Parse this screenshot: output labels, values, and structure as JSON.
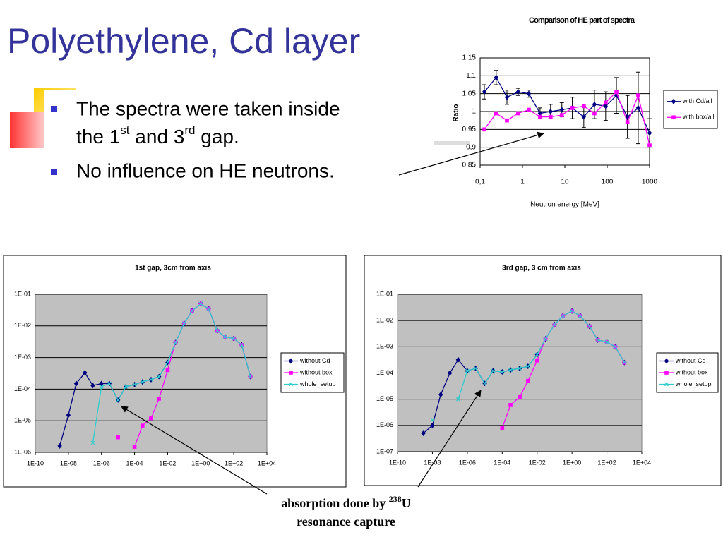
{
  "slide": {
    "title": "Polyethylene, Cd layer",
    "bullets": [
      [
        "The spectra were taken inside",
        "the 1",
        "st",
        " and 3",
        "rd",
        " gap."
      ],
      [
        "No influence on HE neutrons."
      ]
    ],
    "annotation": [
      "absorption done by ",
      "238",
      "U",
      "resonance capture"
    ]
  },
  "chart_data": [
    {
      "type": "line",
      "title": "Comparison of HE part of spectra",
      "x_label": "Neutron energy [MeV]",
      "y_label": "Ratio",
      "xlog": true,
      "ylog": false,
      "grid": true,
      "legend": "right",
      "x": [
        0.126,
        0.24,
        0.43,
        0.79,
        1.41,
        2.6,
        4.6,
        8.5,
        15,
        28,
        50,
        92,
        165,
        300,
        540,
        1000
      ],
      "series": [
        {
          "name": "with Cd/all",
          "color": "#000080",
          "marker": "diamond",
          "values": [
            1.055,
            1.095,
            1.04,
            1.055,
            1.05,
            0.995,
            1.0,
            1.005,
            1.01,
            0.985,
            1.02,
            1.015,
            1.045,
            0.985,
            1.01,
            0.94
          ],
          "errors": [
            0.02,
            0.02,
            0.02,
            0.01,
            0.01,
            0.015,
            0.02,
            0.02,
            0.03,
            0.03,
            0.04,
            0.04,
            0.05,
            0.06,
            0.1,
            0.04
          ]
        },
        {
          "name": "with box/all",
          "color": "#ff00ff",
          "marker": "square",
          "values": [
            0.95,
            0.995,
            0.975,
            0.995,
            1.005,
            0.985,
            0.985,
            0.99,
            1.01,
            1.015,
            0.995,
            1.025,
            1.055,
            0.97,
            1.045,
            0.905
          ]
        }
      ],
      "xlim": [
        0.1,
        1000
      ],
      "xticks": [
        {
          "value": 0.1,
          "label": "0,1"
        },
        1,
        10,
        100,
        1000
      ],
      "ylim": [
        0.85,
        1.15
      ],
      "yticks": [
        {
          "value": 0.85,
          "label": "0,85"
        },
        {
          "value": 0.9,
          "label": "0,9"
        },
        {
          "value": 0.95,
          "label": "0,95"
        },
        1,
        {
          "value": 1.05,
          "label": "1,05"
        },
        {
          "value": 1.1,
          "label": "1,1"
        },
        {
          "value": 1.15,
          "label": "1,15"
        }
      ]
    },
    {
      "type": "line",
      "title": "1st gap, 3cm from axis",
      "xlog": true,
      "ylog": true,
      "grid": true,
      "legend": "right",
      "x": [
        3e-09,
        1e-08,
        3e-08,
        1e-07,
        3e-07,
        1e-06,
        3e-06,
        1e-05,
        3e-05,
        0.0001,
        0.0003,
        0.001,
        0.003,
        0.01,
        0.03,
        0.1,
        0.3,
        1,
        3,
        10,
        30,
        100,
        300,
        1000
      ],
      "series": [
        {
          "name": "without Cd",
          "color": "#000080",
          "marker": "diamond",
          "values": [
            1.6e-06,
            1.5e-05,
            0.00015,
            0.00033,
            0.00013,
            0.00015,
            0.00015,
            4.5e-05,
            0.00012,
            0.00014,
            0.00017,
            0.0002,
            0.00025,
            0.0007,
            0.003,
            0.012,
            0.03,
            0.05,
            0.035,
            0.007,
            0.0045,
            0.004,
            0.0025,
            0.00025
          ]
        },
        {
          "name": "without box",
          "color": "#ff00ff",
          "marker": "square",
          "values": [
            null,
            null,
            null,
            null,
            null,
            null,
            null,
            3e-06,
            null,
            1.5e-06,
            7e-06,
            1.2e-05,
            5e-05,
            0.0004,
            0.003,
            0.012,
            0.03,
            0.05,
            0.035,
            0.007,
            0.0045,
            0.004,
            0.0025,
            0.00025
          ]
        },
        {
          "name": "whole_setup",
          "color": "#33cccc",
          "marker": "x",
          "values": [
            null,
            null,
            null,
            null,
            2e-06,
            0.00012,
            0.00015,
            4.5e-05,
            0.00012,
            0.00014,
            0.00017,
            0.0002,
            0.00025,
            0.0007,
            0.003,
            0.012,
            0.03,
            0.05,
            0.035,
            0.007,
            0.0045,
            0.004,
            0.0025,
            0.00025
          ]
        }
      ],
      "xlim": [
        1e-10,
        10000.0
      ],
      "xticks": [
        {
          "value": 1e-10,
          "label": "1E-10"
        },
        {
          "value": 1e-08,
          "label": "1E-08"
        },
        {
          "value": 1e-06,
          "label": "1E-06"
        },
        {
          "value": 0.0001,
          "label": "1E-04"
        },
        {
          "value": 0.01,
          "label": "1E-02"
        },
        {
          "value": 1,
          "label": "1E+00"
        },
        {
          "value": 100,
          "label": "1E+02"
        },
        {
          "value": 10000.0,
          "label": "1E+04"
        }
      ],
      "ylim": [
        1e-06,
        0.1
      ],
      "yticks": [
        {
          "value": 1e-06,
          "label": "1E-06"
        },
        {
          "value": 1e-05,
          "label": "1E-05"
        },
        {
          "value": 0.0001,
          "label": "1E-04"
        },
        {
          "value": 0.001,
          "label": "1E-03"
        },
        {
          "value": 0.01,
          "label": "1E-02"
        },
        {
          "value": 0.1,
          "label": "1E-01"
        }
      ]
    },
    {
      "type": "line",
      "title": "3rd gap, 3 cm from axis",
      "xlog": true,
      "ylog": true,
      "grid": true,
      "legend": "right",
      "x": [
        3e-09,
        1e-08,
        3e-08,
        1e-07,
        3e-07,
        1e-06,
        3e-06,
        1e-05,
        3e-05,
        0.0001,
        0.0003,
        0.001,
        0.003,
        0.01,
        0.03,
        0.1,
        0.3,
        1,
        3,
        10,
        30,
        100,
        300,
        1000
      ],
      "series": [
        {
          "name": "without Cd",
          "color": "#000080",
          "marker": "diamond",
          "values": [
            5e-07,
            1e-06,
            1.5e-05,
            0.0001,
            0.00032,
            0.00012,
            0.00015,
            4e-05,
            0.00012,
            0.00011,
            0.00013,
            0.00015,
            0.00018,
            0.0005,
            0.002,
            0.007,
            0.015,
            0.023,
            0.015,
            0.006,
            0.0018,
            0.0015,
            0.001,
            0.00025
          ]
        },
        {
          "name": "without box",
          "color": "#ff00ff",
          "marker": "square",
          "values": [
            null,
            null,
            null,
            null,
            null,
            null,
            null,
            null,
            null,
            8e-07,
            6e-06,
            1.2e-05,
            5e-05,
            0.0003,
            0.002,
            0.007,
            0.015,
            0.023,
            0.015,
            0.006,
            0.0018,
            0.0015,
            0.001,
            0.00025
          ]
        },
        {
          "name": "whole_setup",
          "color": "#33cccc",
          "marker": "x",
          "values": [
            null,
            1.6e-06,
            null,
            null,
            1e-05,
            0.00012,
            0.00015,
            4e-05,
            0.00012,
            0.00011,
            0.00013,
            0.00015,
            0.00018,
            0.0005,
            0.002,
            0.007,
            0.015,
            0.023,
            0.015,
            0.006,
            0.0018,
            0.0015,
            0.001,
            0.00025
          ]
        }
      ],
      "xlim": [
        1e-10,
        10000.0
      ],
      "xticks": [
        {
          "value": 1e-10,
          "label": "1E-10"
        },
        {
          "value": 1e-08,
          "label": "1E-08"
        },
        {
          "value": 1e-06,
          "label": "1E-06"
        },
        {
          "value": 0.0001,
          "label": "1E-04"
        },
        {
          "value": 0.01,
          "label": "1E-02"
        },
        {
          "value": 1,
          "label": "1E+00"
        },
        {
          "value": 100,
          "label": "1E+02"
        },
        {
          "value": 10000.0,
          "label": "1E+04"
        }
      ],
      "ylim": [
        1e-07,
        0.1
      ],
      "yticks": [
        {
          "value": 1e-07,
          "label": "1E-07"
        },
        {
          "value": 1e-06,
          "label": "1E-06"
        },
        {
          "value": 1e-05,
          "label": "1E-05"
        },
        {
          "value": 0.0001,
          "label": "1E-04"
        },
        {
          "value": 0.001,
          "label": "1E-03"
        },
        {
          "value": 0.01,
          "label": "1E-02"
        },
        {
          "value": 0.1,
          "label": "1E-01"
        }
      ]
    }
  ]
}
